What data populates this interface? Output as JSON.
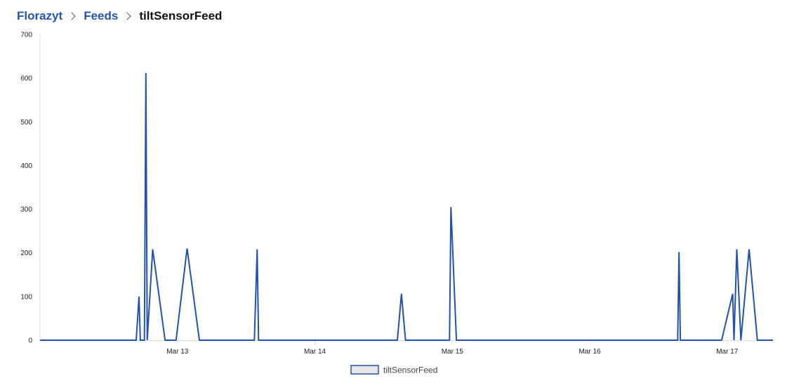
{
  "breadcrumb": {
    "items": [
      "Florazyt",
      "Feeds"
    ],
    "current": "tiltSensorFeed"
  },
  "chart_data": {
    "type": "line",
    "title": "",
    "xlabel": "",
    "ylabel": "",
    "ylim": [
      0,
      700
    ],
    "yticks": [
      0,
      100,
      200,
      300,
      400,
      500,
      600,
      700
    ],
    "xlim": [
      "2024-03-12T00:00",
      "2024-03-17T08:00"
    ],
    "xticks": [
      {
        "label": "Mar 13",
        "x": "2024-03-13T00:00"
      },
      {
        "label": "Mar 14",
        "x": "2024-03-14T00:00"
      },
      {
        "label": "Mar 15",
        "x": "2024-03-15T00:00"
      },
      {
        "label": "Mar 16",
        "x": "2024-03-16T00:00"
      },
      {
        "label": "Mar 17",
        "x": "2024-03-17T00:00"
      }
    ],
    "grid": false,
    "legend_position": "bottom-center",
    "series": [
      {
        "name": "tiltSensorFeed",
        "color": "#2152b0",
        "points": [
          [
            "2024-03-12T00:00",
            0
          ],
          [
            "2024-03-12T16:48",
            0
          ],
          [
            "2024-03-12T17:17",
            100
          ],
          [
            "2024-03-12T17:31",
            0
          ],
          [
            "2024-03-12T18:14",
            0
          ],
          [
            "2024-03-12T18:29",
            612
          ],
          [
            "2024-03-12T18:43",
            0
          ],
          [
            "2024-03-12T19:41",
            208
          ],
          [
            "2024-03-12T21:50",
            0
          ],
          [
            "2024-03-12T23:46",
            0
          ],
          [
            "2024-03-13T01:41",
            210
          ],
          [
            "2024-03-13T03:50",
            0
          ],
          [
            "2024-03-13T13:26",
            0
          ],
          [
            "2024-03-13T13:55",
            208
          ],
          [
            "2024-03-13T14:10",
            0
          ],
          [
            "2024-03-14T14:24",
            0
          ],
          [
            "2024-03-14T15:07",
            106
          ],
          [
            "2024-03-14T15:50",
            0
          ],
          [
            "2024-03-14T23:31",
            0
          ],
          [
            "2024-03-14T23:46",
            305
          ],
          [
            "2024-03-15T00:43",
            0
          ],
          [
            "2024-03-16T15:22",
            0
          ],
          [
            "2024-03-16T15:36",
            202
          ],
          [
            "2024-03-16T15:50",
            0
          ],
          [
            "2024-03-16T23:02",
            0
          ],
          [
            "2024-03-17T00:58",
            106
          ],
          [
            "2024-03-17T01:12",
            0
          ],
          [
            "2024-03-17T01:41",
            208
          ],
          [
            "2024-03-17T02:24",
            0
          ],
          [
            "2024-03-17T03:50",
            208
          ],
          [
            "2024-03-17T05:17",
            0
          ],
          [
            "2024-03-17T08:00",
            0
          ]
        ]
      }
    ]
  },
  "colors": {
    "link": "#2355b3",
    "series": "#2152b0",
    "axis": "#dcdcdc",
    "legend_fill": "#e6e6e6"
  }
}
